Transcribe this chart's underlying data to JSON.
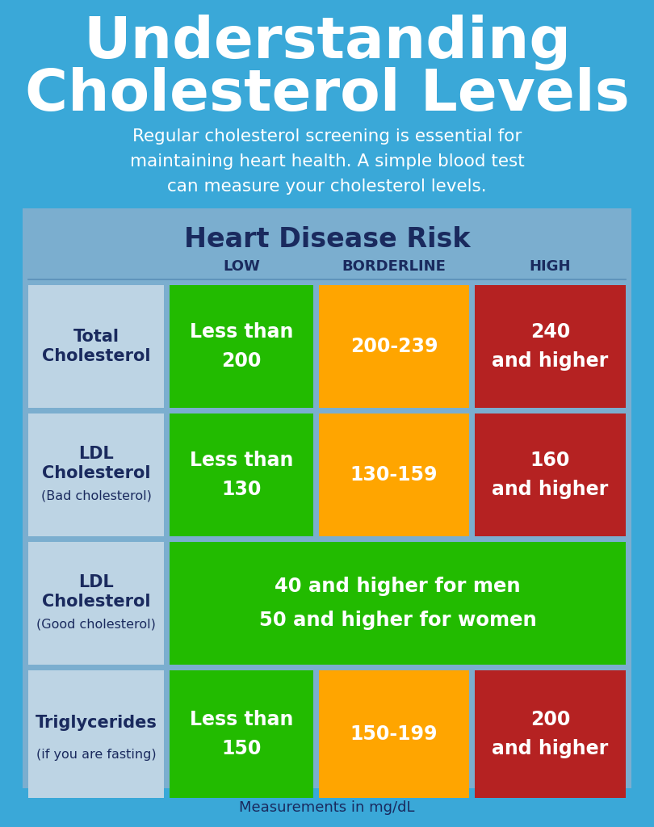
{
  "bg_color": "#3aA8D8",
  "title_line1": "Understanding",
  "title_line2": "Cholesterol Levels",
  "title_color": "#ffffff",
  "subtitle": "Regular cholesterol screening is essential for\nmaintaining heart health. A simple blood test\ncan measure your cholesterol levels.",
  "subtitle_color": "#ffffff",
  "table_bg": "#7baecf",
  "header_title": "Heart Disease Risk",
  "header_title_color": "#1a2a5e",
  "header_cols": [
    "LOW",
    "BORDERLINE",
    "HIGH"
  ],
  "header_col_color": "#1a2a5e",
  "row_label_bg": "#bdd4e4",
  "row_label_color": "#1a2a5e",
  "green_color": "#22bb00",
  "orange_color": "#FFA500",
  "red_color": "#b52222",
  "cell_text_color": "#ffffff",
  "rows": [
    {
      "label_bold": "Total\nCholesterol",
      "label_sub": "",
      "low": "Less than\n200",
      "borderline": "200-239",
      "high": "240\nand higher",
      "span": false
    },
    {
      "label_bold": "LDL\nCholesterol",
      "label_sub": "(Bad cholesterol)",
      "low": "Less than\n130",
      "borderline": "130-159",
      "high": "160\nand higher",
      "span": false
    },
    {
      "label_bold": "LDL\nCholesterol",
      "label_sub": "(Good cholesterol)",
      "low": "",
      "borderline": "",
      "high": "",
      "span": true,
      "span_text": "40 and higher for men\n50 and higher for women"
    },
    {
      "label_bold": "Triglycerides",
      "label_sub": "(if you are fasting)",
      "low": "Less than\n150",
      "borderline": "150-199",
      "high": "200\nand higher",
      "span": false
    }
  ],
  "footer": "Measurements in mg/dL",
  "footer_color": "#1a2a5e"
}
